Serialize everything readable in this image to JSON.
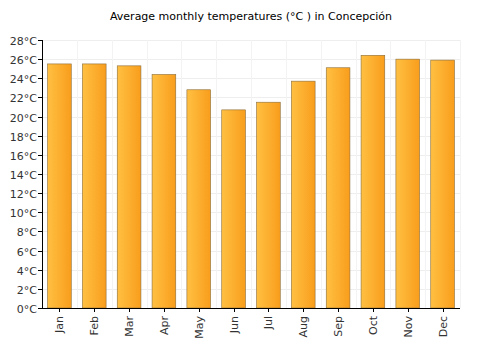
{
  "chart_data": {
    "type": "bar",
    "title": "Average monthly temperatures (°C ) in Concepción",
    "categories": [
      "Jan",
      "Feb",
      "Mar",
      "Apr",
      "May",
      "Jun",
      "Jul",
      "Aug",
      "Sep",
      "Oct",
      "Nov",
      "Dec"
    ],
    "values": [
      25.5,
      25.5,
      25.3,
      24.4,
      22.8,
      20.7,
      21.5,
      23.7,
      25.1,
      26.4,
      26.0,
      25.9
    ],
    "color": "#f99d1c",
    "ylim": [
      0,
      28
    ],
    "yticks": [
      {
        "value": 0,
        "label": "0°C"
      },
      {
        "value": 2,
        "label": "2°C"
      },
      {
        "value": 4,
        "label": "4°C"
      },
      {
        "value": 6,
        "label": "6°C"
      },
      {
        "value": 8,
        "label": "8°C"
      },
      {
        "value": 10,
        "label": "10°C"
      },
      {
        "value": 12,
        "label": "12°C"
      },
      {
        "value": 14,
        "label": "14°C"
      },
      {
        "value": 16,
        "label": "16°C"
      },
      {
        "value": 18,
        "label": "18°C"
      },
      {
        "value": 20,
        "label": "20°C"
      },
      {
        "value": 22,
        "label": "22°C"
      },
      {
        "value": 24,
        "label": "24°C"
      },
      {
        "value": 26,
        "label": "26°C"
      },
      {
        "value": 28,
        "label": "28°C"
      }
    ],
    "grid": true
  }
}
